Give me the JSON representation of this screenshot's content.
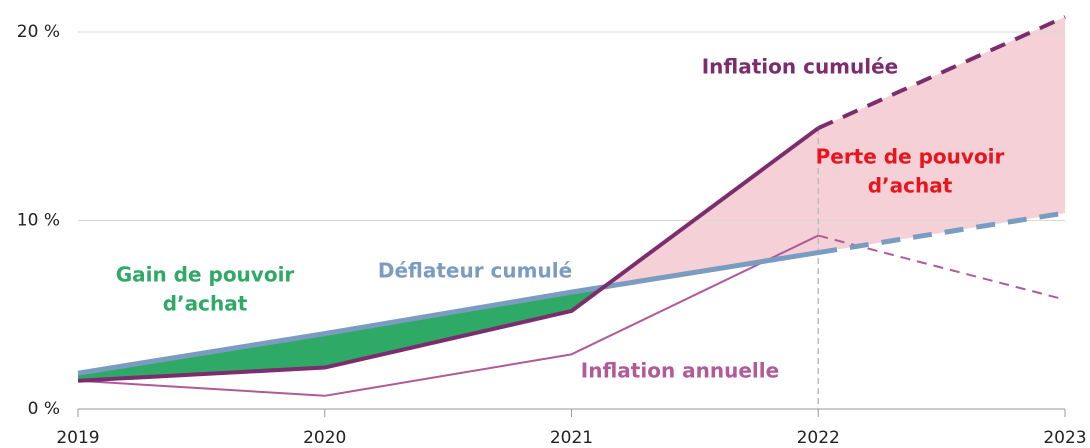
{
  "chart_data": {
    "type": "line",
    "categories": [
      "2019",
      "2020",
      "2021",
      "2022",
      "2023"
    ],
    "projection_start": "2022",
    "series": [
      {
        "name": "Inflation annuelle",
        "color": "#b05a9a",
        "line_width": 2,
        "values": [
          1.5,
          0.7,
          2.9,
          9.2,
          5.8
        ]
      },
      {
        "name": "Déflateur cumulé",
        "color": "#7a9cc0",
        "line_width": 5,
        "values": [
          1.9,
          4.0,
          6.2,
          8.3,
          10.4
        ]
      },
      {
        "name": "Inflation cumulée",
        "color": "#7b2d6e",
        "line_width": 4,
        "values": [
          1.5,
          2.2,
          5.2,
          14.9,
          20.8
        ]
      }
    ],
    "gain_color": "#2eaa66",
    "loss_color": "#f5d0d6",
    "annotations": {
      "gain": [
        "Gain de pouvoir",
        "d’achat"
      ],
      "loss": [
        "Perte de pouvoir",
        "d’achat"
      ]
    },
    "ylim": [
      0,
      21
    ],
    "yticks": [
      {
        "value": 0,
        "label": "0 %"
      },
      {
        "value": 10,
        "label": "10 %"
      },
      {
        "value": 20,
        "label": "20 %"
      }
    ],
    "grid": true
  }
}
